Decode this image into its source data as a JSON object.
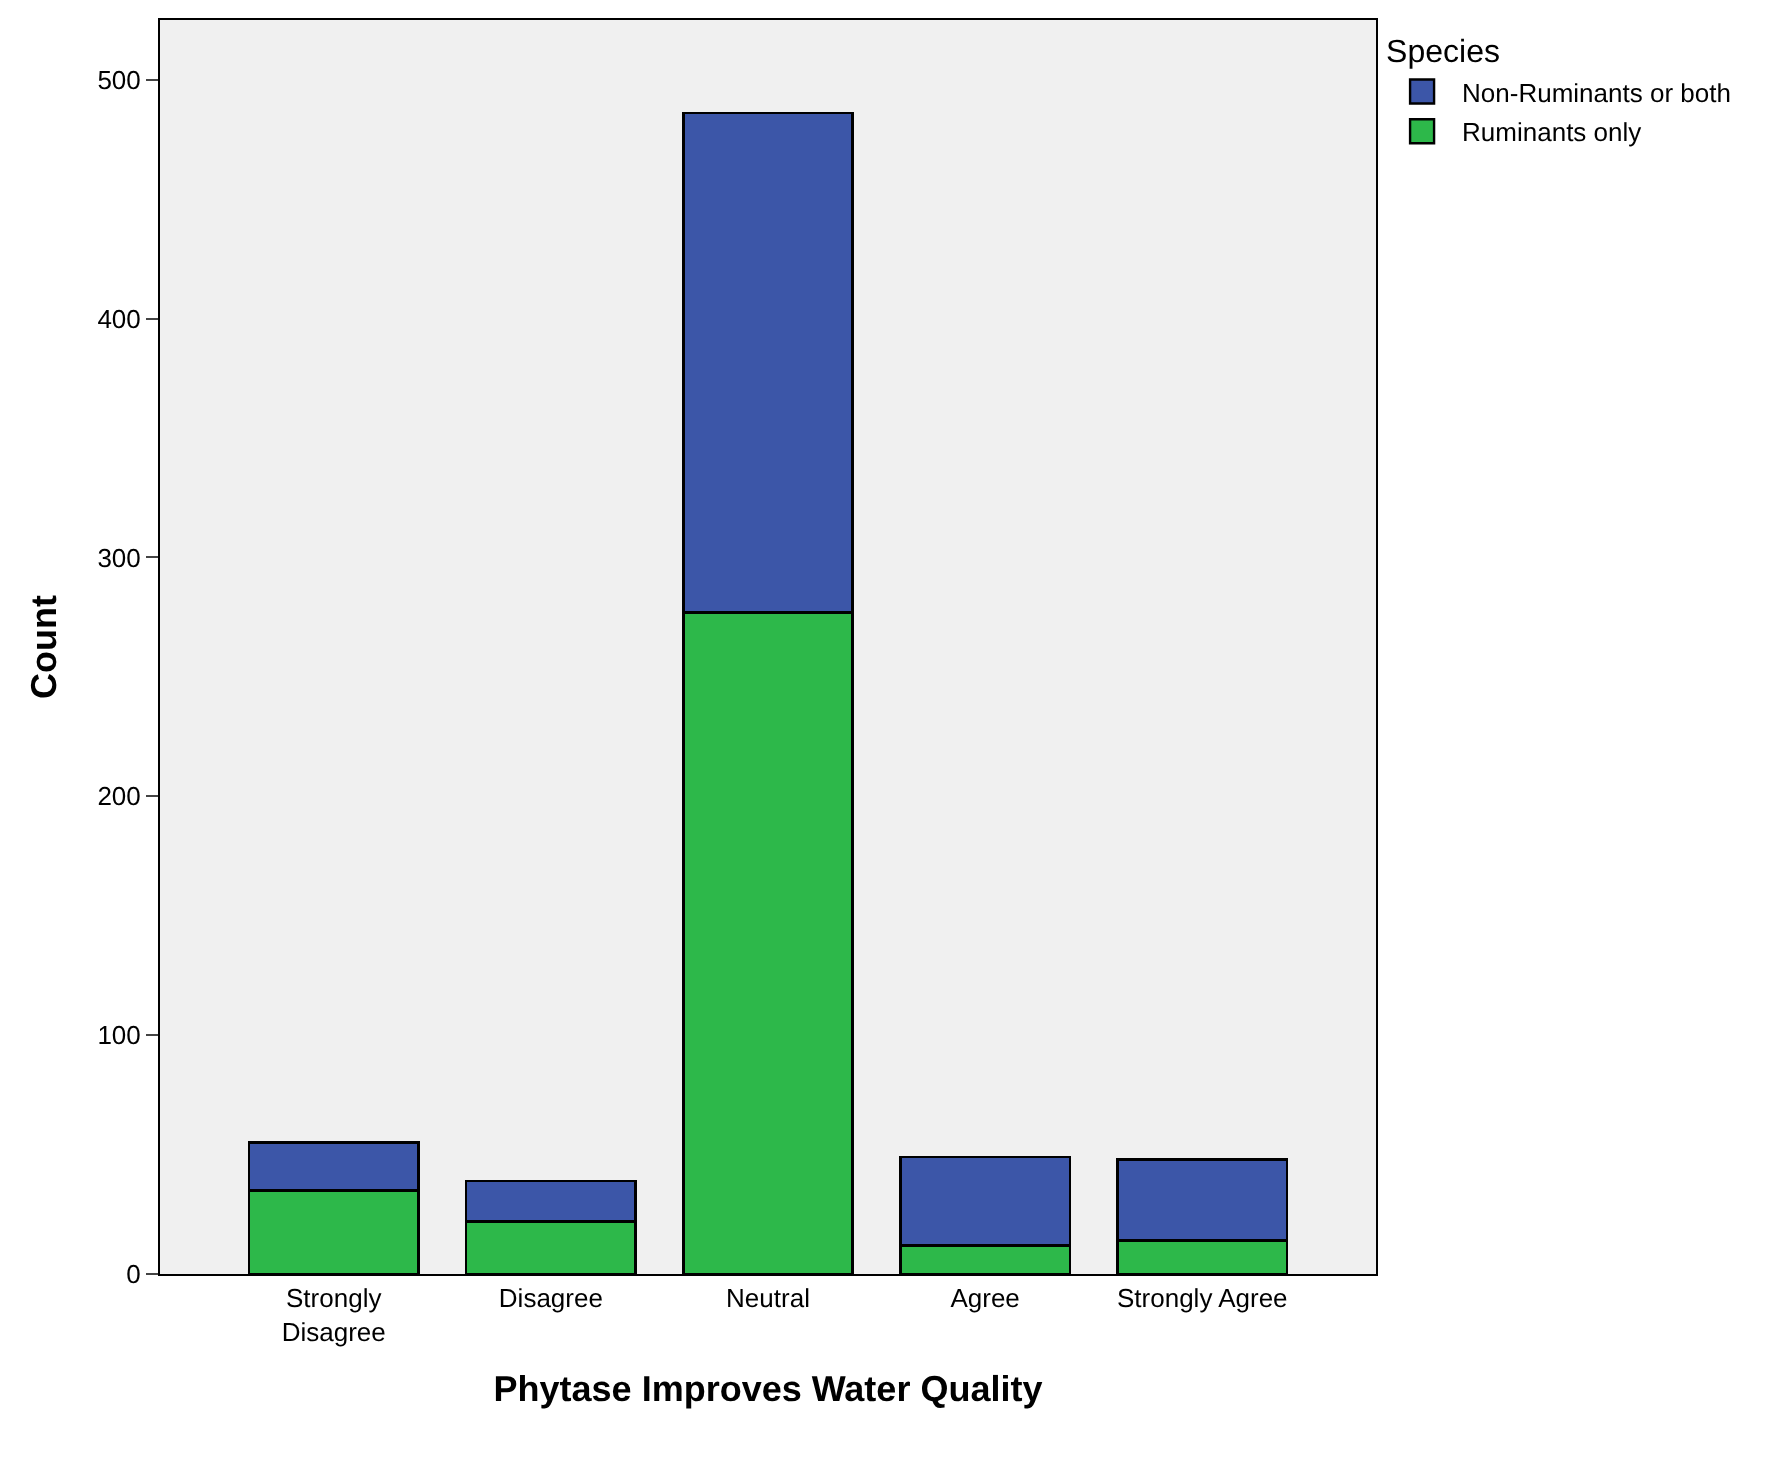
{
  "chart_data": {
    "type": "bar",
    "stacked": true,
    "xlabel": "Phytase Improves Water Quality",
    "ylabel": "Count",
    "legend_title": "Species",
    "legend": "top right",
    "categories": [
      "Strongly Disagree",
      "Disagree",
      "Neutral",
      "Agree",
      "Strongly Agree"
    ],
    "series": [
      {
        "name": "Ruminants only",
        "color": "#2db84a",
        "values": [
          35,
          22,
          277,
          12,
          14
        ]
      },
      {
        "name": "Non-Ruminants or both",
        "color": "#3c56a8",
        "values": [
          20,
          17,
          209,
          37,
          34
        ]
      }
    ],
    "ylim": [
      0,
      525
    ],
    "yticks": [
      0,
      100,
      200,
      300,
      400,
      500
    ],
    "grid": false
  }
}
